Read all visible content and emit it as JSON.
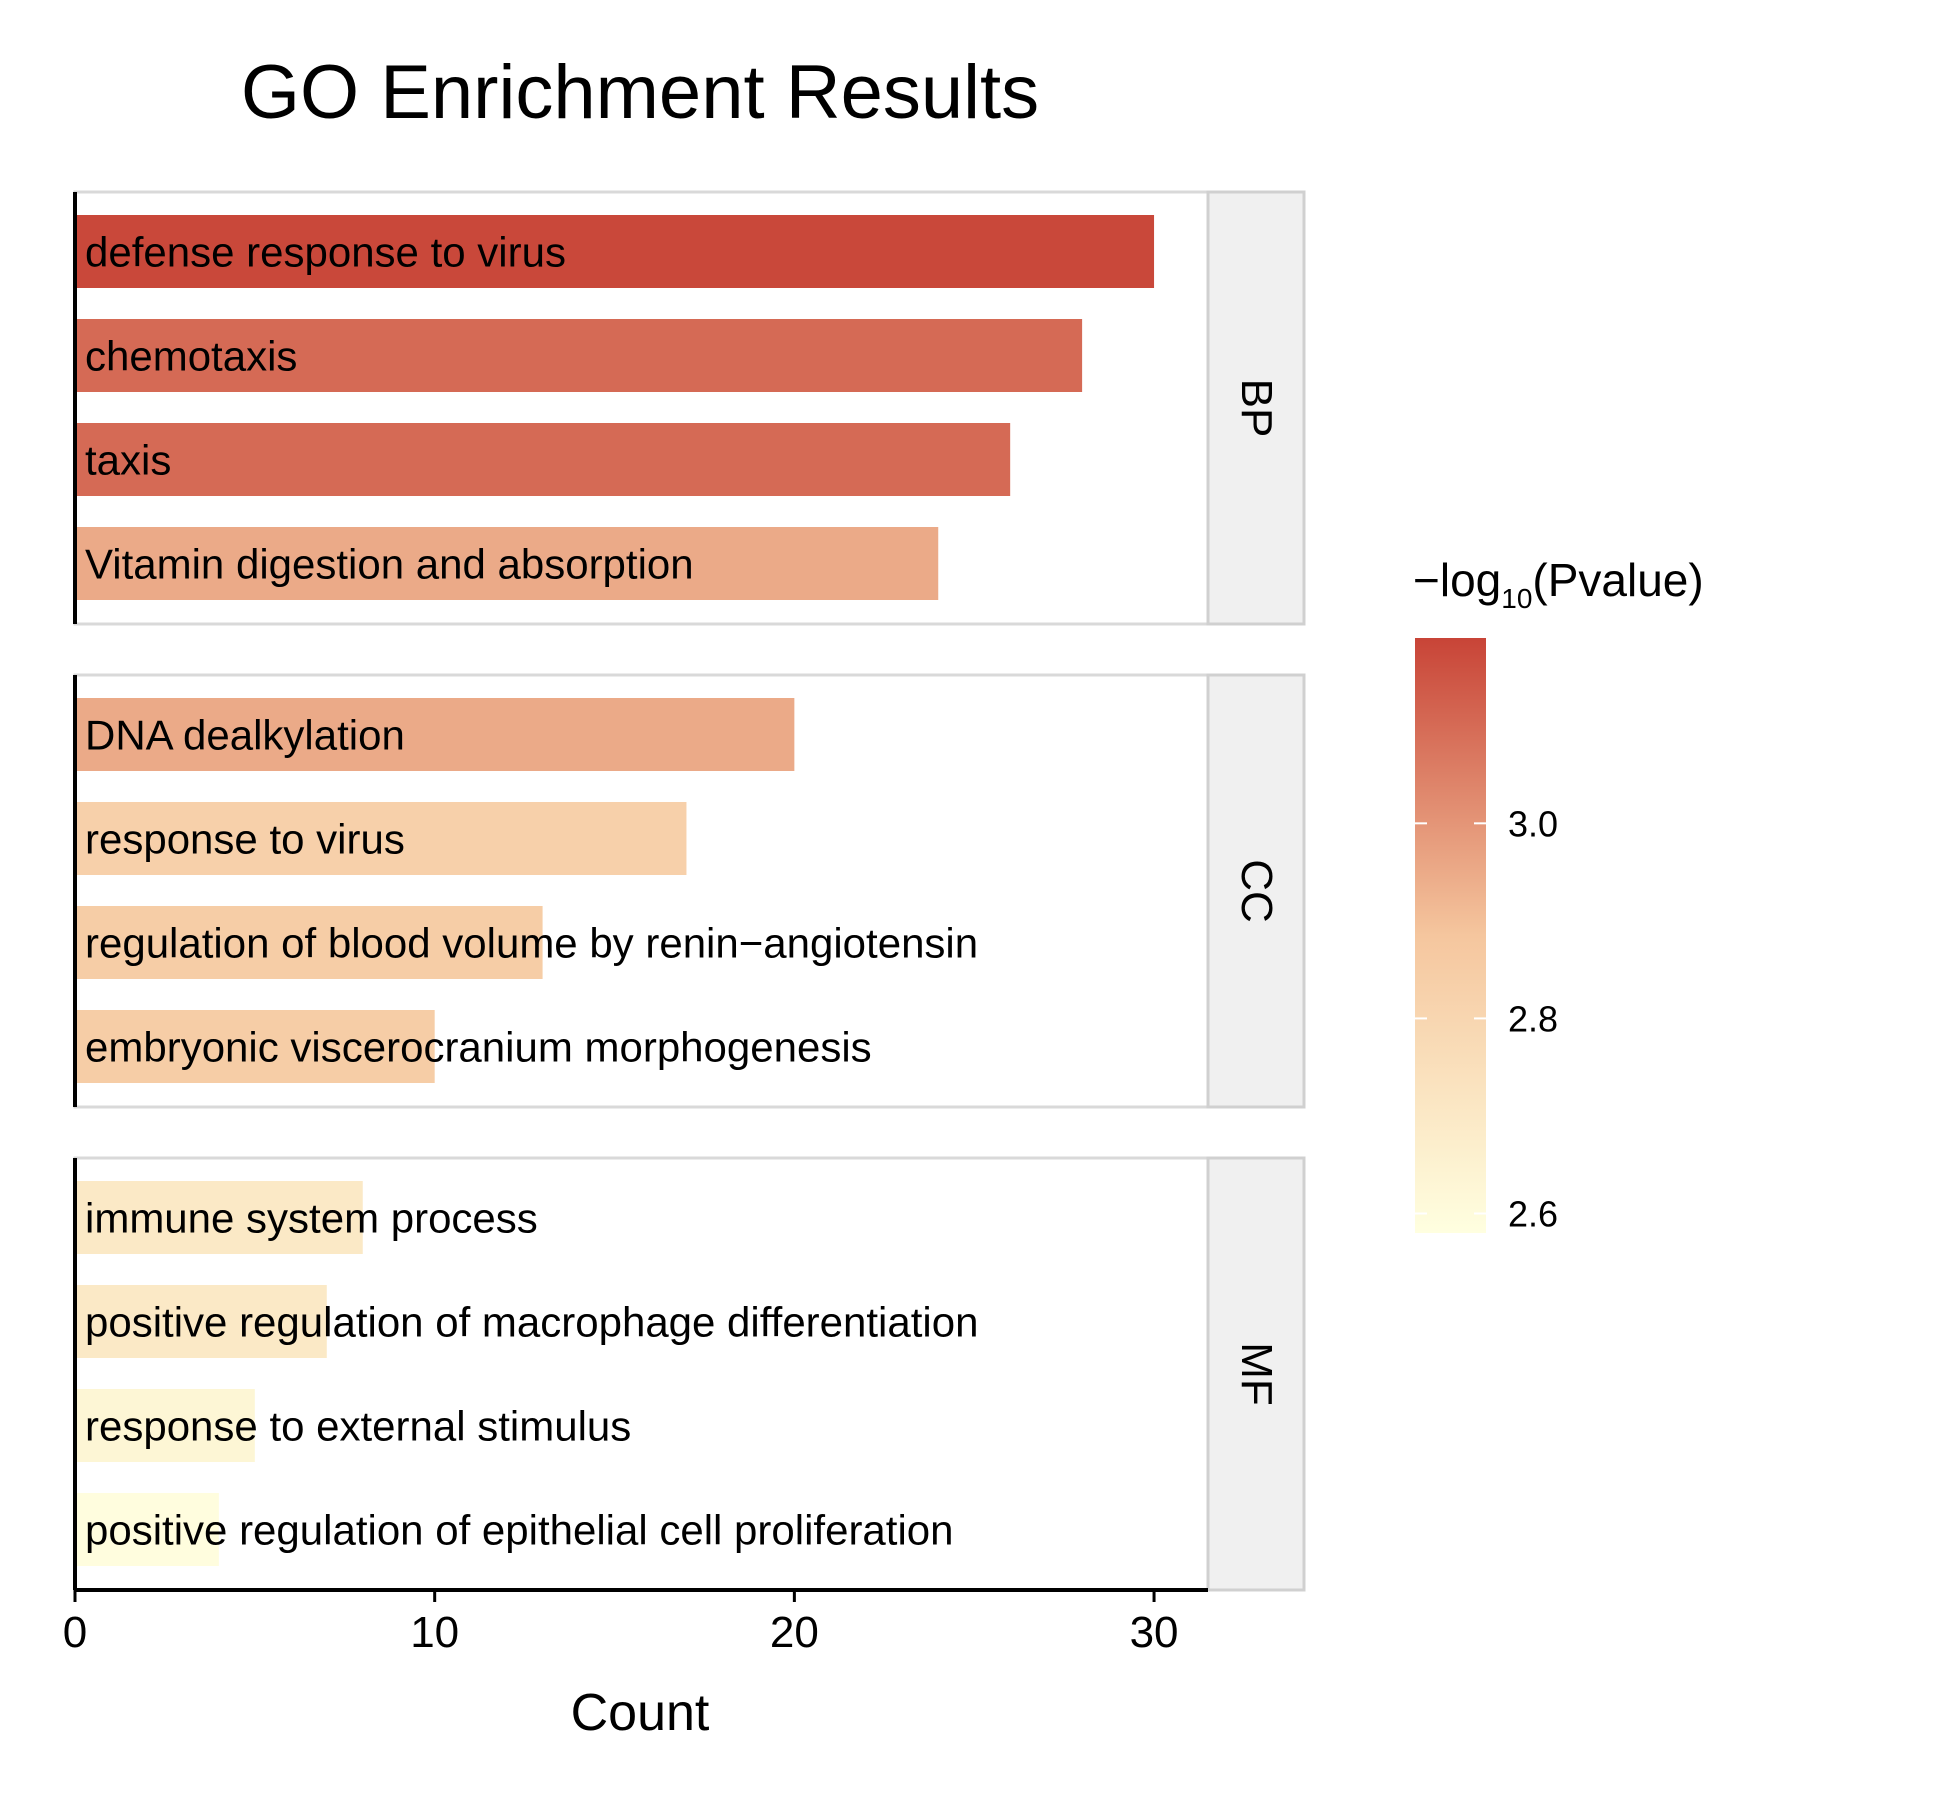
{
  "chart_data": {
    "type": "bar",
    "orientation": "horizontal",
    "title": "GO Enrichment Results",
    "xlabel": "Count",
    "ylabel": "",
    "xlim": [
      0,
      31.5
    ],
    "x_ticks": [
      0,
      10,
      20,
      30
    ],
    "legend": {
      "title_prefix": "−log",
      "title_sub": "10",
      "title_suffix": "(Pvalue)",
      "position": "right",
      "range": [
        2.58,
        3.19
      ],
      "ticks": [
        2.6,
        2.8,
        3.0
      ],
      "tick_labels": [
        "2.6",
        "2.8",
        "3.0"
      ],
      "low_color": "#ffffe0",
      "mid_color": "#f5c69e",
      "high_color": "#c84437"
    },
    "facets": [
      {
        "label": "BP",
        "bars": [
          {
            "term": "defense response to virus",
            "count": 30,
            "neglog10p": 3.18
          },
          {
            "term": "chemotaxis",
            "count": 28,
            "neglog10p": 3.1
          },
          {
            "term": "taxis",
            "count": 26,
            "neglog10p": 3.1
          },
          {
            "term": "Vitamin digestion and absorption",
            "count": 24,
            "neglog10p": 2.95
          }
        ]
      },
      {
        "label": "CC",
        "bars": [
          {
            "term": "DNA dealkylation",
            "count": 20,
            "neglog10p": 2.95
          },
          {
            "term": "response to virus",
            "count": 17,
            "neglog10p": 2.83
          },
          {
            "term": "regulation of blood volume by renin−angiotensin",
            "count": 13,
            "neglog10p": 2.85
          },
          {
            "term": "embryonic viscerocranium morphogenesis",
            "count": 10,
            "neglog10p": 2.85
          }
        ]
      },
      {
        "label": "MF",
        "bars": [
          {
            "term": "immune system process",
            "count": 8,
            "neglog10p": 2.7
          },
          {
            "term": "positive regulation of macrophage differentiation",
            "count": 7,
            "neglog10p": 2.7
          },
          {
            "term": "response to external stimulus",
            "count": 5,
            "neglog10p": 2.63
          },
          {
            "term": "positive regulation of epithelial cell proliferation",
            "count": 4,
            "neglog10p": 2.59
          }
        ]
      }
    ]
  }
}
